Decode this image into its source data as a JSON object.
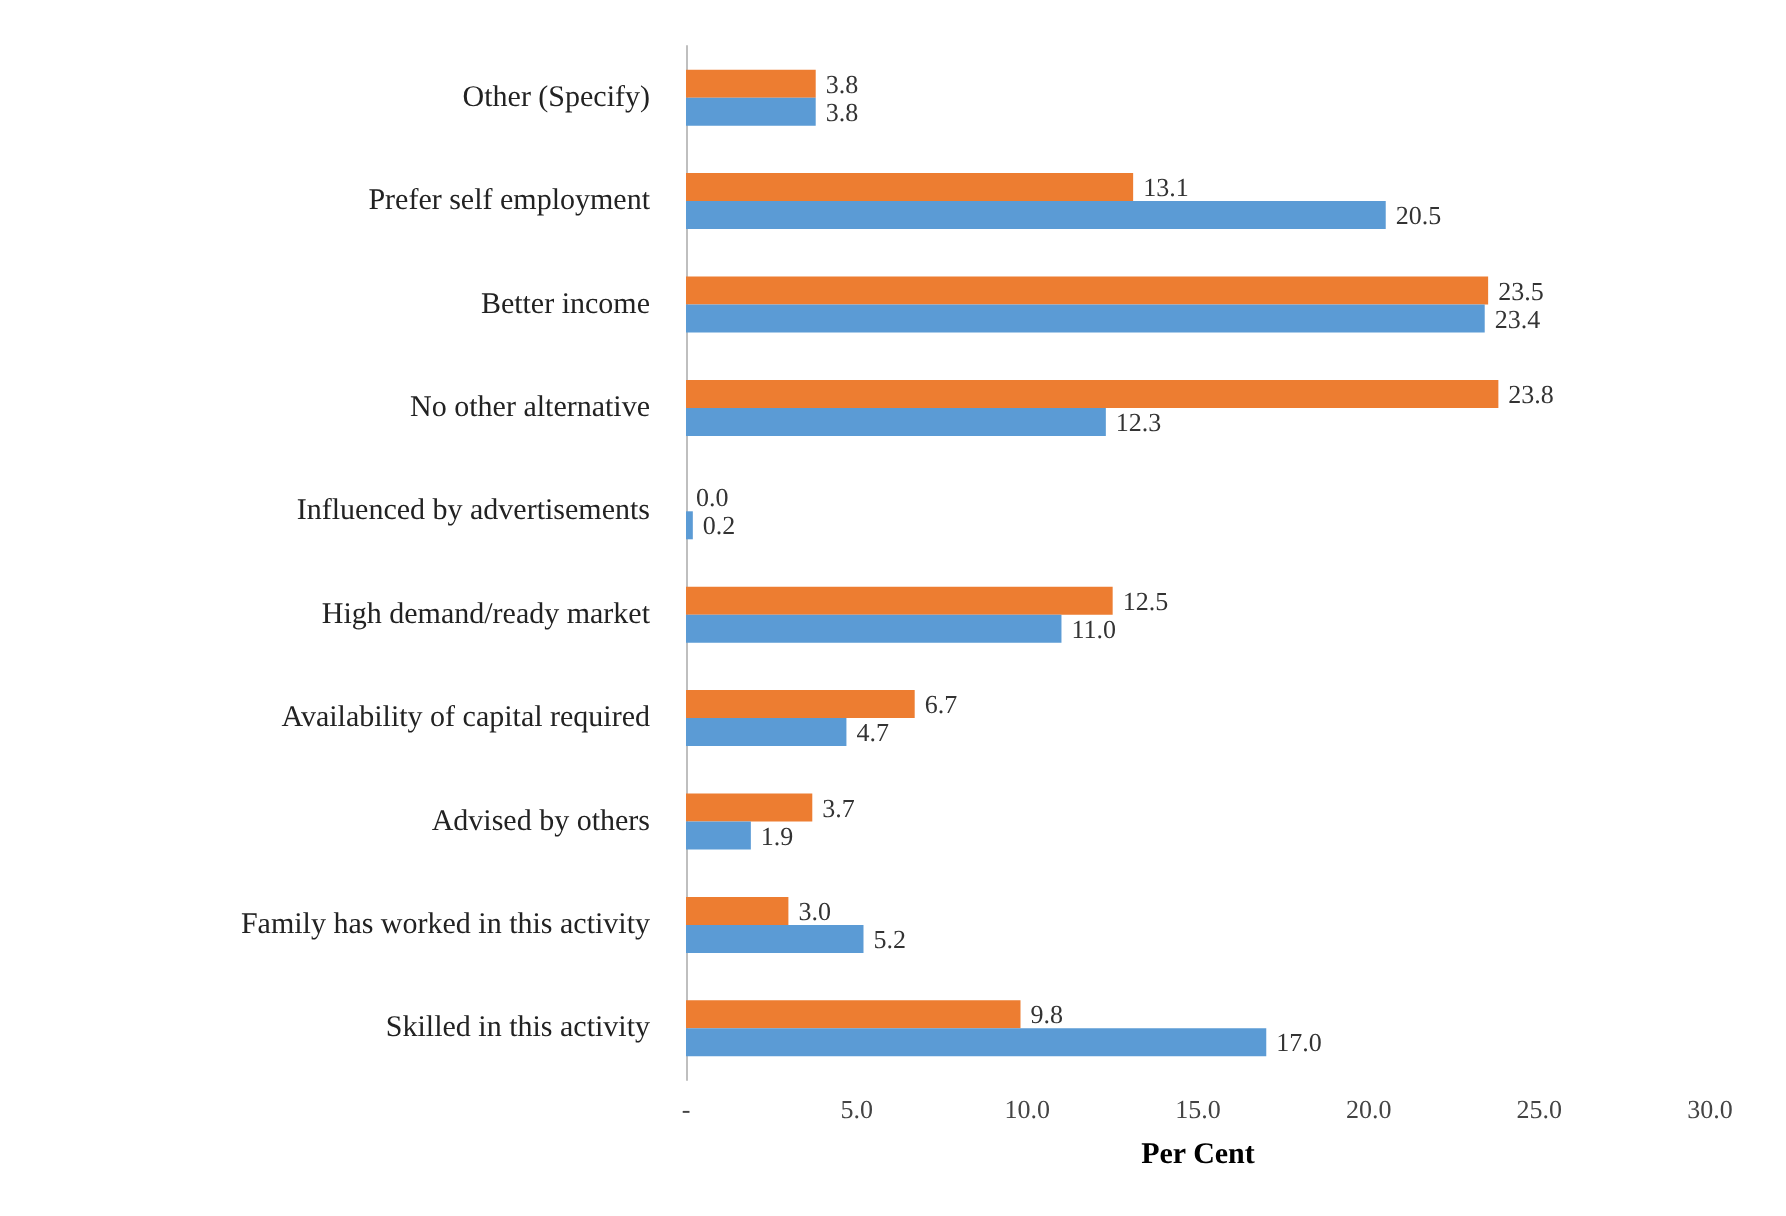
{
  "chart_data": {
    "type": "bar",
    "orientation": "horizontal",
    "xlabel": "Per Cent",
    "categories": [
      "Other (Specify)",
      "Prefer self employment",
      "Better income",
      "No other alternative",
      "Influenced by advertisements",
      "High demand/ready market",
      "Availability of capital required",
      "Advised by others",
      "Family has worked in this activity",
      "Skilled in this activity"
    ],
    "series": [
      {
        "color": "#ed7d31",
        "values": [
          3.8,
          13.1,
          23.5,
          23.8,
          0.0,
          12.5,
          6.7,
          3.7,
          3.0,
          9.8
        ],
        "value_labels": [
          "3.8",
          "13.1",
          "23.5",
          "23.8",
          "0.0",
          "12.5",
          "6.7",
          "3.7",
          "3.0",
          "9.8"
        ]
      },
      {
        "color": "#5b9bd5",
        "values": [
          3.8,
          20.5,
          23.4,
          12.3,
          0.2,
          11.0,
          4.7,
          1.9,
          5.2,
          17.0
        ],
        "value_labels": [
          "3.8",
          "20.5",
          "23.4",
          "12.3",
          "0.2",
          "11.0",
          "4.7",
          "1.9",
          "5.2",
          "17.0"
        ]
      }
    ],
    "xlim": [
      0,
      30
    ],
    "xticks": [
      {
        "value": 0,
        "label": "-"
      },
      {
        "value": 5,
        "label": "5.0"
      },
      {
        "value": 10,
        "label": "10.0"
      },
      {
        "value": 15,
        "label": "15.0"
      },
      {
        "value": 20,
        "label": "20.0"
      },
      {
        "value": 25,
        "label": "25.0"
      },
      {
        "value": 30,
        "label": "30.0"
      }
    ],
    "grid": false
  }
}
